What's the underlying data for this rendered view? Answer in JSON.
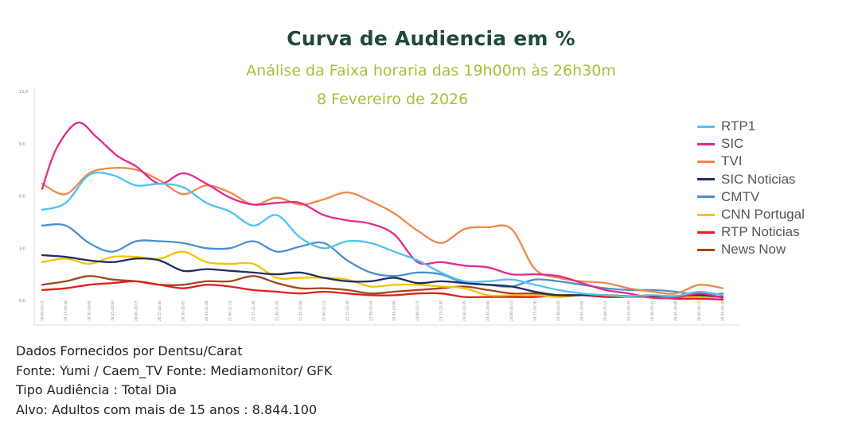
{
  "header": {
    "title": "Curva de Audiencia em %",
    "subtitle": "Análise da Faixa horaria das 19h00m às 26h30m",
    "date": "8 Fevereiro de 2026"
  },
  "footer": {
    "lines": [
      "Dados Fornecidos por Dentsu/Carat",
      "Fonte: Yumi / Caem_TV Fonte: Mediamonitor/ GFK",
      "Tipo Audiência : Total Dia",
      "Alvo: Adultos com mais de 15 anos : 8.844.100"
    ]
  },
  "chart_data": {
    "type": "line",
    "ylim": [
      0,
      12
    ],
    "yticks": [
      "0,0",
      "3,0",
      "6,0",
      "9,0",
      "12,0"
    ],
    "grid": false,
    "legend_position": "right",
    "categories": [
      "19:00-19:15",
      "19:15-19:30",
      "19:30-19:45",
      "19:45-20:00",
      "20:00-20:15",
      "20:15-20:30",
      "20:30-20:45",
      "20:45-21:00",
      "21:00-21:15",
      "21:15-21:30",
      "21:30-21:45",
      "21:45-22:00",
      "22:00-22:15",
      "22:15-22:30",
      "22:30-22:45",
      "22:45-23:00",
      "23:00-23:15",
      "23:15-23:30",
      "23:30-23:45",
      "23:45-24:00",
      "24:00-24:15",
      "24:15-24:30",
      "24:30-24:45",
      "24:45-25:00",
      "25:00-25:15",
      "25:15-25:30",
      "25:30-25:45",
      "25:45-26:00",
      "26:00-26:15",
      "26:15-26:30"
    ],
    "series": [
      {
        "name": "RTP1",
        "color": "#4fc3ee",
        "points": [
          [
            0,
            5.2
          ],
          [
            1,
            5.6
          ],
          [
            2,
            7.2
          ],
          [
            3,
            7.2
          ],
          [
            4,
            6.6
          ],
          [
            5,
            6.7
          ],
          [
            6,
            6.5
          ],
          [
            7,
            5.6
          ],
          [
            8,
            5.1
          ],
          [
            9,
            4.3
          ],
          [
            10,
            4.9
          ],
          [
            11,
            3.6
          ],
          [
            12,
            3.0
          ],
          [
            13,
            3.4
          ],
          [
            14,
            3.3
          ],
          [
            15,
            2.8
          ],
          [
            16,
            2.3
          ],
          [
            17,
            1.6
          ],
          [
            18,
            1.1
          ],
          [
            19,
            1.1
          ],
          [
            20,
            1.2
          ],
          [
            21,
            0.9
          ],
          [
            22,
            0.6
          ],
          [
            23,
            0.4
          ],
          [
            24,
            0.3
          ],
          [
            25,
            0.25
          ],
          [
            26,
            0.3
          ],
          [
            27,
            0.25
          ],
          [
            28,
            0.5
          ],
          [
            29,
            0.3
          ]
        ]
      },
      {
        "name": "SIC",
        "color": "#e42a8c",
        "points": [
          [
            0,
            6.4
          ],
          [
            0.6,
            8.7
          ],
          [
            1.5,
            10.2
          ],
          [
            2.3,
            9.4
          ],
          [
            3.2,
            8.3
          ],
          [
            4,
            7.7
          ],
          [
            5,
            6.7
          ],
          [
            6,
            7.3
          ],
          [
            7,
            6.7
          ],
          [
            8,
            5.9
          ],
          [
            9,
            5.5
          ],
          [
            10,
            5.6
          ],
          [
            11,
            5.6
          ],
          [
            12,
            4.9
          ],
          [
            13,
            4.6
          ],
          [
            14,
            4.4
          ],
          [
            15,
            3.8
          ],
          [
            16,
            2.2
          ],
          [
            17,
            2.2
          ],
          [
            18,
            2.0
          ],
          [
            19,
            1.9
          ],
          [
            20,
            1.5
          ],
          [
            21,
            1.5
          ],
          [
            22,
            1.4
          ],
          [
            23,
            1.0
          ],
          [
            24,
            0.6
          ],
          [
            25,
            0.4
          ],
          [
            26,
            0.15
          ],
          [
            27,
            0.15
          ],
          [
            28,
            0.4
          ],
          [
            29,
            0.15
          ]
        ]
      },
      {
        "name": "TVI",
        "color": "#f0874a",
        "points": [
          [
            0,
            6.7
          ],
          [
            1,
            6.1
          ],
          [
            2,
            7.3
          ],
          [
            3,
            7.6
          ],
          [
            4,
            7.5
          ],
          [
            5,
            6.9
          ],
          [
            6,
            6.1
          ],
          [
            7,
            6.6
          ],
          [
            8,
            6.2
          ],
          [
            9,
            5.5
          ],
          [
            10,
            5.9
          ],
          [
            11,
            5.5
          ],
          [
            12,
            5.8
          ],
          [
            13,
            6.2
          ],
          [
            14,
            5.7
          ],
          [
            15,
            5.0
          ],
          [
            16,
            4.0
          ],
          [
            17,
            3.3
          ],
          [
            18,
            4.1
          ],
          [
            19,
            4.2
          ],
          [
            20,
            4.1
          ],
          [
            21,
            1.8
          ],
          [
            22,
            1.3
          ],
          [
            23,
            1.1
          ],
          [
            24,
            1.0
          ],
          [
            25,
            0.7
          ],
          [
            26,
            0.5
          ],
          [
            27,
            0.4
          ],
          [
            28,
            0.9
          ],
          [
            29,
            0.7
          ]
        ]
      },
      {
        "name": "SIC Noticias",
        "color": "#1f2e63",
        "points": [
          [
            0,
            2.6
          ],
          [
            1,
            2.5
          ],
          [
            2,
            2.3
          ],
          [
            3,
            2.2
          ],
          [
            4,
            2.4
          ],
          [
            5,
            2.3
          ],
          [
            6,
            1.7
          ],
          [
            7,
            1.8
          ],
          [
            8,
            1.7
          ],
          [
            9,
            1.6
          ],
          [
            10,
            1.5
          ],
          [
            11,
            1.6
          ],
          [
            12,
            1.3
          ],
          [
            13,
            1.1
          ],
          [
            14,
            1.1
          ],
          [
            15,
            1.3
          ],
          [
            16,
            1.0
          ],
          [
            17,
            1.1
          ],
          [
            18,
            1.0
          ],
          [
            19,
            0.9
          ],
          [
            20,
            0.8
          ],
          [
            21,
            0.5
          ],
          [
            22,
            0.3
          ],
          [
            23,
            0.3
          ],
          [
            24,
            0.3
          ],
          [
            25,
            0.25
          ],
          [
            26,
            0.25
          ],
          [
            27,
            0.25
          ],
          [
            28,
            0.3
          ],
          [
            29,
            0.2
          ]
        ]
      },
      {
        "name": "CMTV",
        "color": "#4a90cf",
        "points": [
          [
            0,
            4.3
          ],
          [
            1,
            4.3
          ],
          [
            2,
            3.3
          ],
          [
            3,
            2.8
          ],
          [
            4,
            3.4
          ],
          [
            5,
            3.4
          ],
          [
            6,
            3.3
          ],
          [
            7,
            3.0
          ],
          [
            8,
            3.0
          ],
          [
            9,
            3.4
          ],
          [
            10,
            2.8
          ],
          [
            11,
            3.1
          ],
          [
            12,
            3.3
          ],
          [
            13,
            2.3
          ],
          [
            14,
            1.6
          ],
          [
            15,
            1.4
          ],
          [
            16,
            1.6
          ],
          [
            17,
            1.5
          ],
          [
            18,
            1.0
          ],
          [
            19,
            0.9
          ],
          [
            20,
            0.8
          ],
          [
            21,
            1.2
          ],
          [
            22,
            1.1
          ],
          [
            23,
            0.9
          ],
          [
            24,
            0.7
          ],
          [
            25,
            0.6
          ],
          [
            26,
            0.6
          ],
          [
            27,
            0.5
          ],
          [
            28,
            0.3
          ],
          [
            29,
            0.4
          ]
        ]
      },
      {
        "name": "CNN Portugal",
        "color": "#f4c300",
        "points": [
          [
            0,
            2.2
          ],
          [
            1,
            2.4
          ],
          [
            2,
            2.1
          ],
          [
            3,
            2.5
          ],
          [
            4,
            2.5
          ],
          [
            5,
            2.4
          ],
          [
            6,
            2.8
          ],
          [
            7,
            2.2
          ],
          [
            8,
            2.1
          ],
          [
            9,
            2.1
          ],
          [
            10,
            1.3
          ],
          [
            11,
            1.3
          ],
          [
            12,
            1.3
          ],
          [
            13,
            1.2
          ],
          [
            14,
            0.8
          ],
          [
            15,
            0.9
          ],
          [
            16,
            0.9
          ],
          [
            17,
            0.8
          ],
          [
            18,
            0.7
          ],
          [
            19,
            0.3
          ],
          [
            20,
            0.3
          ],
          [
            21,
            0.3
          ],
          [
            22,
            0.2
          ],
          [
            23,
            0.3
          ],
          [
            24,
            0.3
          ],
          [
            25,
            0.2
          ],
          [
            26,
            0.2
          ],
          [
            27,
            0.2
          ],
          [
            28,
            0.2
          ],
          [
            29,
            0.2
          ]
        ]
      },
      {
        "name": "RTP Noticias",
        "color": "#e41c1c",
        "points": [
          [
            0,
            0.6
          ],
          [
            1,
            0.7
          ],
          [
            2,
            0.9
          ],
          [
            3,
            1.0
          ],
          [
            4,
            1.1
          ],
          [
            5,
            0.9
          ],
          [
            6,
            0.7
          ],
          [
            7,
            0.9
          ],
          [
            8,
            0.8
          ],
          [
            9,
            0.6
          ],
          [
            10,
            0.5
          ],
          [
            11,
            0.4
          ],
          [
            12,
            0.5
          ],
          [
            13,
            0.4
          ],
          [
            14,
            0.3
          ],
          [
            15,
            0.3
          ],
          [
            16,
            0.4
          ],
          [
            17,
            0.4
          ],
          [
            18,
            0.2
          ],
          [
            19,
            0.2
          ],
          [
            20,
            0.2
          ],
          [
            21,
            0.2
          ],
          [
            22,
            0.3
          ],
          [
            23,
            0.3
          ],
          [
            24,
            0.2
          ],
          [
            25,
            0.2
          ],
          [
            26,
            0.2
          ],
          [
            27,
            0.1
          ],
          [
            28,
            0.1
          ],
          [
            29,
            0.05
          ]
        ]
      },
      {
        "name": "News Now",
        "color": "#a0461e",
        "points": [
          [
            0,
            0.9
          ],
          [
            1,
            1.1
          ],
          [
            2,
            1.4
          ],
          [
            3,
            1.2
          ],
          [
            4,
            1.1
          ],
          [
            5,
            0.9
          ],
          [
            6,
            0.9
          ],
          [
            7,
            1.1
          ],
          [
            8,
            1.1
          ],
          [
            9,
            1.4
          ],
          [
            10,
            1.0
          ],
          [
            11,
            0.7
          ],
          [
            12,
            0.7
          ],
          [
            13,
            0.6
          ],
          [
            14,
            0.4
          ],
          [
            15,
            0.5
          ],
          [
            16,
            0.6
          ],
          [
            17,
            0.7
          ],
          [
            18,
            0.8
          ],
          [
            19,
            0.6
          ],
          [
            20,
            0.4
          ],
          [
            21,
            0.4
          ],
          [
            22,
            0.3
          ],
          [
            23,
            0.3
          ],
          [
            24,
            0.3
          ],
          [
            25,
            0.2
          ],
          [
            26,
            0.2
          ],
          [
            27,
            0.2
          ],
          [
            28,
            0.2
          ],
          [
            29,
            0.2
          ]
        ]
      }
    ]
  }
}
